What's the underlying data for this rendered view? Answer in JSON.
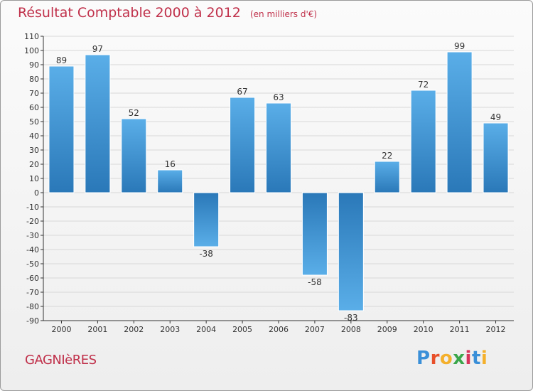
{
  "header": {
    "title": "Résultat Comptable 2000 à 2012",
    "subtitle": "(en milliers d'€)"
  },
  "footer": {
    "commune": "GAGNIèRES",
    "brand": "Proxiti",
    "brand_letters": [
      {
        "ch": "P",
        "color": "#3a8fd8"
      },
      {
        "ch": "r",
        "color": "#e8502a"
      },
      {
        "ch": "o",
        "color": "#f4b02c"
      },
      {
        "ch": "x",
        "color": "#3aa64a"
      },
      {
        "ch": "i",
        "color": "#d8345a"
      },
      {
        "ch": "t",
        "color": "#3a8fd8"
      },
      {
        "ch": "i",
        "color": "#f4b02c"
      }
    ]
  },
  "colors": {
    "bar_light": "#5aaee8",
    "bar_dark": "#2a78b8",
    "grid": "#d8d8d8",
    "axis": "#333333",
    "title": "#c0304a"
  },
  "chart_data": {
    "type": "bar",
    "title": "Résultat Comptable 2000 à 2012",
    "subtitle": "(en milliers d'€)",
    "xlabel": "",
    "ylabel": "",
    "categories": [
      "2000",
      "2001",
      "2002",
      "2003",
      "2004",
      "2005",
      "2006",
      "2007",
      "2008",
      "2009",
      "2010",
      "2011",
      "2012"
    ],
    "values": [
      89,
      97,
      52,
      16,
      -38,
      67,
      63,
      -58,
      -83,
      22,
      72,
      99,
      49
    ],
    "ylim": [
      -90,
      110
    ],
    "ytick_step": 10,
    "grid": true
  }
}
